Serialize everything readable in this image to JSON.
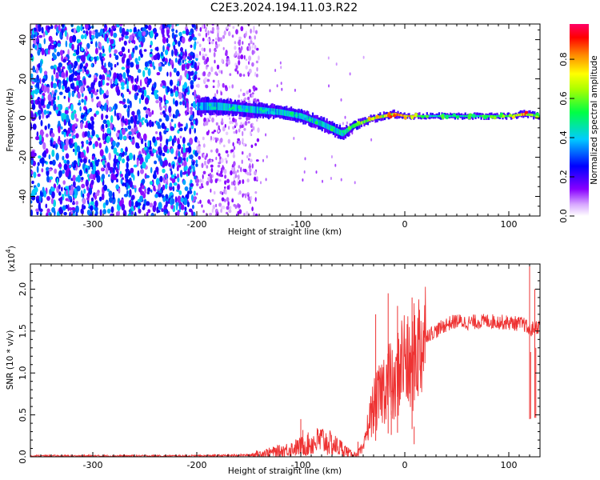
{
  "title": "C2E3.2024.194.11.03.R22",
  "chart_data": [
    {
      "type": "heatmap",
      "title": "C2E3.2024.194.11.03.R22",
      "xlabel": "Height of straight line (km)",
      "ylabel": "Frequency (Hz)",
      "xlim": [
        -360,
        130
      ],
      "ylim": [
        -50,
        48
      ],
      "xticks": [
        -300,
        -200,
        -100,
        0,
        100
      ],
      "yticks": [
        -40,
        -20,
        0,
        20,
        40
      ],
      "colorbar": {
        "label": "Normalized spectral amplitude",
        "range": [
          0,
          1
        ],
        "ticks": [
          "0.0",
          "0.2",
          "0.4",
          "0.6",
          "0.8"
        ],
        "colors": [
          "#ffffff",
          "#8800ff",
          "#0000ff",
          "#00ffff",
          "#00ff00",
          "#ffff00",
          "#ff8800",
          "#ff0000",
          "#ff0088"
        ]
      },
      "noise_region": {
        "x": [
          -360,
          -200
        ],
        "level": 0.35
      },
      "sparse_region": {
        "x": [
          -200,
          -140
        ],
        "level": 0.12
      },
      "trace": {
        "x": [
          -200,
          -180,
          -160,
          -140,
          -120,
          -100,
          -80,
          -60,
          -50,
          -40,
          -30,
          -20,
          -10,
          0,
          20,
          50,
          80,
          100,
          115,
          130
        ],
        "center": [
          6,
          6,
          5,
          4,
          3,
          1,
          -3,
          -8,
          -4,
          -2,
          0,
          1,
          2,
          1,
          1,
          1,
          1,
          1,
          2,
          1
        ],
        "width": [
          8,
          8,
          7,
          7,
          6,
          6,
          6,
          6,
          4,
          3,
          3,
          3,
          3,
          2,
          2,
          2,
          2,
          2,
          3,
          2
        ],
        "amplitude": [
          0.4,
          0.45,
          0.45,
          0.45,
          0.45,
          0.45,
          0.5,
          0.5,
          0.6,
          0.7,
          0.75,
          0.8,
          0.85,
          0.9,
          0.55,
          0.5,
          0.55,
          0.6,
          0.9,
          0.55
        ]
      }
    },
    {
      "type": "line",
      "xlabel": "Height of straight line (km)",
      "ylabel": "SNR (10 * v/v)",
      "yscale_label": "(x10",
      "yscale_exponent": "4",
      "yscale_close": ")",
      "xlim": [
        -360,
        130
      ],
      "ylim": [
        0,
        2.3
      ],
      "xticks": [
        -300,
        -200,
        -100,
        0,
        100
      ],
      "yticks": [
        "0.0",
        "0.5",
        "1.0",
        "1.5",
        "2.0"
      ],
      "color": "#ee3333",
      "series": [
        {
          "x": [
            -360,
            -300,
            -200,
            -150,
            -120,
            -100,
            -80,
            -60,
            -50,
            -40,
            -35,
            -30,
            -25,
            -20,
            -15,
            -10,
            -5,
            0,
            5,
            10,
            15,
            20,
            30,
            40,
            50,
            60,
            80,
            100,
            115,
            120,
            125,
            130
          ],
          "y": [
            0.01,
            0.01,
            0.01,
            0.02,
            0.07,
            0.12,
            0.2,
            0.1,
            0.02,
            0.08,
            0.4,
            0.6,
            0.7,
            0.85,
            0.95,
            0.75,
            1.1,
            1.2,
            1.0,
            1.25,
            1.35,
            1.45,
            1.5,
            1.58,
            1.62,
            1.6,
            1.62,
            1.6,
            1.58,
            1.5,
            1.55,
            1.55
          ]
        }
      ],
      "spikes": [
        {
          "x": -45,
          "y": 0.18
        },
        {
          "x": -28,
          "y": 1.7
        },
        {
          "x": -16,
          "y": 1.95
        },
        {
          "x": -13,
          "y": 0.55
        },
        {
          "x": -7,
          "y": 1.8
        },
        {
          "x": 7,
          "y": 1.9
        },
        {
          "x": 9,
          "y": 0.15
        },
        {
          "x": 120,
          "y": 2.3
        },
        {
          "x": 121,
          "y": 1.25
        },
        {
          "x": 125,
          "y": 2.0
        },
        {
          "x": 126,
          "y": 1.3
        },
        {
          "x": -98,
          "y": 0.32
        },
        {
          "x": -100,
          "y": 0.45
        }
      ]
    }
  ]
}
